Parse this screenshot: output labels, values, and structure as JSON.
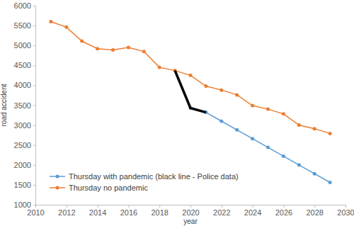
{
  "chart_data": {
    "type": "line",
    "x_label": "year",
    "y_label": "road accident",
    "xlim": [
      2010,
      2030
    ],
    "xticks": [
      2010,
      2012,
      2014,
      2016,
      2018,
      2020,
      2022,
      2024,
      2026,
      2028,
      2030
    ],
    "ylim": [
      1000,
      6000
    ],
    "yticks": [
      1000,
      1500,
      2000,
      2500,
      3000,
      3500,
      4000,
      4500,
      5000,
      5500,
      6000
    ],
    "grid": false,
    "legend": "lower left",
    "series": [
      {
        "name": "Thursday with pandemic (black line - Police data)",
        "color": "#5b9bd5",
        "marker": "circle",
        "line_style": "solid",
        "x": [
          2020,
          2021,
          2022,
          2023,
          2024,
          2025,
          2026,
          2027,
          2028,
          2029
        ],
        "values": [
          3430,
          3320,
          3100,
          2880,
          2660,
          2440,
          2220,
          2000,
          1780,
          1560
        ]
      },
      {
        "name": "Thursday no pandemic",
        "color": "#ed7d31",
        "marker": "circle",
        "line_style": "solid",
        "x": [
          2011,
          2012,
          2013,
          2014,
          2015,
          2016,
          2017,
          2018,
          2019,
          2020,
          2021,
          2022,
          2023,
          2024,
          2025,
          2026,
          2027,
          2028,
          2029
        ],
        "values": [
          5600,
          5460,
          5110,
          4920,
          4890,
          4950,
          4850,
          4450,
          4370,
          4250,
          3980,
          3880,
          3760,
          3490,
          3400,
          3280,
          3000,
          2910,
          2790
        ]
      },
      {
        "color": "#000000",
        "marker": "none",
        "line_style": "thick",
        "x": [
          2019,
          2020,
          2021
        ],
        "values": [
          4370,
          3430,
          3320
        ]
      }
    ]
  }
}
